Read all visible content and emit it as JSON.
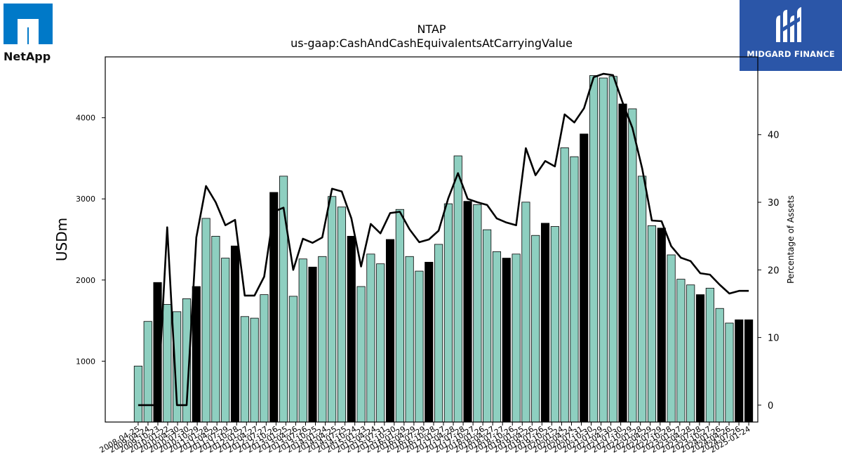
{
  "header": {
    "ticker": "NTAP",
    "subtitle": "us-gaap:CashAndCashEquivalentsAtCarryingValue"
  },
  "logos": {
    "left_company": "NetApp",
    "right_brand": "MIDGARD FINANCE"
  },
  "colors": {
    "bar_normal": "#8ecfc0",
    "bar_highlight": "#000000",
    "line": "#000000",
    "netapp_blue": "#0079c8",
    "midgard_blue": "#2b56a8"
  },
  "chart_data": {
    "type": "bar",
    "ylabel_left": "USDm",
    "ylabel_right": "Percentage of Assets",
    "ylim_left": [
      250,
      4750
    ],
    "ylim_right": [
      -2.5,
      51.5
    ],
    "yticks_left": [
      1000,
      2000,
      3000,
      4000
    ],
    "yticks_right": [
      0,
      10,
      20,
      30,
      40
    ],
    "categories": [
      "2008-04-25",
      "2008-04-25",
      "2009-04-24",
      "2009-10-23",
      "2010-01-22",
      "2010-04-30",
      "2010-07-30",
      "2010-10-29",
      "2011-01-28",
      "2011-04-29",
      "2011-07-29",
      "2011-10-28",
      "2012-01-27",
      "2012-04-27",
      "2012-07-27",
      "2012-10-26",
      "2013-01-25",
      "2013-04-26",
      "2013-07-26",
      "2013-10-25",
      "2014-01-24",
      "2014-04-25",
      "2014-07-25",
      "2014-10-24",
      "2015-01-23",
      "2015-04-24",
      "2015-07-31",
      "2015-10-30",
      "2016-01-29",
      "2016-04-29",
      "2016-07-29",
      "2016-10-28",
      "2017-01-27",
      "2017-04-28",
      "2017-07-28",
      "2017-10-27",
      "2018-01-26",
      "2018-04-27",
      "2018-07-27",
      "2018-10-26",
      "2019-01-25",
      "2019-04-26",
      "2019-07-26",
      "2019-10-25",
      "2020-01-24",
      "2020-04-24",
      "2020-07-31",
      "2020-10-30",
      "2021-01-29",
      "2021-04-30",
      "2021-07-30",
      "2021-10-29",
      "2022-01-28",
      "2022-04-29",
      "2022-07-29",
      "2022-10-28",
      "2023-01-27",
      "2023-04-28",
      "2023-07-28",
      "2023-10-27",
      "2024-01-26",
      "2024-04-26",
      "2024-07-26",
      "2025-01-24"
    ],
    "tick_labels_shown": [
      "2008-04-25",
      "2009-04-24",
      "2009-10-23",
      "2010-01-22",
      "2010-04-30",
      "2010-07-30",
      "2010-10-29",
      "2011-01-28",
      "2011-04-29",
      "2011-07-29",
      "2011-10-28",
      "2012-01-27",
      "2012-04-27",
      "2012-07-27",
      "2012-10-26",
      "2013-01-25",
      "2013-04-26",
      "2013-07-26",
      "2013-10-25",
      "2014-01-24",
      "2014-04-25",
      "2014-07-25",
      "2014-10-24",
      "2015-01-23",
      "2015-04-24",
      "2015-07-31",
      "2015-10-30",
      "2016-01-29",
      "2016-04-29",
      "2016-07-29",
      "2016-10-28",
      "2017-01-27",
      "2017-04-28",
      "2017-07-28",
      "2017-10-27",
      "2018-01-26",
      "2018-04-27",
      "2018-07-27",
      "2018-10-26",
      "2019-01-25",
      "2019-04-26",
      "2019-07-26",
      "2019-10-25",
      "2020-01-24",
      "2020-04-24",
      "2020-07-31",
      "2020-10-30",
      "2021-01-29",
      "2021-04-30",
      "2021-07-30",
      "2021-10-29",
      "2022-01-28",
      "2022-04-29",
      "2022-07-29",
      "2022-10-28",
      "2023-01-27",
      "2023-04-28",
      "2023-07-28",
      "2023-10-27",
      "2024-01-26",
      "2024-04-26",
      "2024-07-26",
      "2025-01-24"
    ],
    "values": [
      940,
      1490,
      1970,
      1700,
      1610,
      1770,
      1920,
      2760,
      2540,
      2270,
      2420,
      1550,
      1530,
      1820,
      3080,
      3280,
      1800,
      2260,
      2160,
      2290,
      3030,
      2900,
      2540,
      1920,
      2320,
      2200,
      2500,
      2870,
      2290,
      2110,
      2220,
      2440,
      2940,
      3530,
      2970,
      2930,
      2620,
      2350,
      2270,
      2320,
      2960,
      2550,
      2700,
      2660,
      3630,
      3520,
      3800,
      4520,
      4490,
      4510,
      4170,
      4110,
      3280,
      2670,
      2640,
      2310,
      2010,
      1940,
      1820,
      1900,
      1650,
      1470,
      1510,
      1510
    ],
    "highlight": [
      false,
      false,
      true,
      false,
      false,
      false,
      true,
      false,
      false,
      false,
      true,
      false,
      false,
      false,
      true,
      false,
      false,
      false,
      true,
      false,
      false,
      false,
      true,
      false,
      false,
      false,
      true,
      false,
      false,
      false,
      true,
      false,
      false,
      false,
      true,
      false,
      false,
      false,
      true,
      false,
      false,
      false,
      true,
      false,
      false,
      false,
      true,
      false,
      false,
      false,
      true,
      false,
      false,
      false,
      true,
      false,
      false,
      false,
      true,
      false,
      false,
      false,
      true,
      true
    ],
    "series": [
      {
        "type": "line",
        "axis": "right",
        "values": [
          0,
          0,
          0,
          26.3,
          0,
          0,
          24.8,
          32.4,
          30.0,
          26.6,
          27.4,
          16.2,
          16.2,
          19.0,
          28.6,
          29.2,
          20.0,
          24.6,
          24.0,
          24.8,
          32.0,
          31.6,
          27.6,
          20.5,
          26.8,
          25.4,
          28.4,
          28.6,
          26.0,
          24.1,
          24.5,
          25.8,
          30.6,
          34.3,
          30.5,
          30.0,
          29.6,
          27.6,
          27.0,
          26.6,
          38.0,
          34.0,
          36.1,
          35.3,
          43.0,
          41.8,
          43.9,
          48.5,
          49.0,
          48.8,
          44.7,
          41.0,
          35.0,
          27.3,
          27.2,
          23.5,
          21.8,
          21.3,
          19.5,
          19.3,
          17.8,
          16.5,
          16.9,
          16.9
        ]
      }
    ],
    "grid": false
  }
}
